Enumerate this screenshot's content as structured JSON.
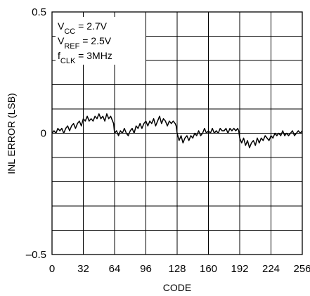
{
  "chart_data": {
    "type": "line",
    "title": "",
    "xlabel": "CODE",
    "ylabel": "INL ERROR (LSB)",
    "xlim": [
      0,
      256
    ],
    "ylim": [
      -0.5,
      0.5
    ],
    "x_ticks": [
      "0",
      "32",
      "64",
      "96",
      "128",
      "160",
      "192",
      "224",
      "256"
    ],
    "y_tick_labels": [
      {
        "value": 0.5,
        "label": "0.5"
      },
      {
        "value": 0,
        "label": "0"
      },
      {
        "value": -0.5,
        "label": "–0.5"
      }
    ],
    "grid": true,
    "annotation": [
      {
        "main": "V",
        "sub": "CC",
        "rest": " = 2.7V"
      },
      {
        "main": "V",
        "sub": "REF",
        "rest": " = 2.5V"
      },
      {
        "main": "f",
        "sub": "CLK",
        "rest": " = 3MHz"
      }
    ],
    "series": [
      {
        "points": [
          [
            0,
            0.0
          ],
          [
            2,
            0.01
          ],
          [
            4,
            0.0
          ],
          [
            6,
            0.02
          ],
          [
            8,
            0.01
          ],
          [
            10,
            0.02
          ],
          [
            12,
            0.0
          ],
          [
            14,
            0.02
          ],
          [
            16,
            0.03
          ],
          [
            18,
            0.01
          ],
          [
            20,
            0.03
          ],
          [
            22,
            0.04
          ],
          [
            24,
            0.02
          ],
          [
            26,
            0.04
          ],
          [
            28,
            0.05
          ],
          [
            30,
            0.03
          ],
          [
            32,
            0.06
          ],
          [
            34,
            0.05
          ],
          [
            36,
            0.07
          ],
          [
            38,
            0.05
          ],
          [
            40,
            0.06
          ],
          [
            42,
            0.05
          ],
          [
            44,
            0.07
          ],
          [
            46,
            0.06
          ],
          [
            48,
            0.08
          ],
          [
            50,
            0.06
          ],
          [
            52,
            0.07
          ],
          [
            54,
            0.05
          ],
          [
            56,
            0.08
          ],
          [
            58,
            0.06
          ],
          [
            60,
            0.07
          ],
          [
            62,
            0.05
          ],
          [
            63,
            0.04
          ],
          [
            64,
            0.0
          ],
          [
            66,
            0.01
          ],
          [
            68,
            -0.01
          ],
          [
            70,
            0.01
          ],
          [
            72,
            0.0
          ],
          [
            74,
            0.02
          ],
          [
            76,
            0.0
          ],
          [
            78,
            -0.01
          ],
          [
            80,
            0.01
          ],
          [
            82,
            0.02
          ],
          [
            84,
            0.0
          ],
          [
            86,
            0.03
          ],
          [
            88,
            0.02
          ],
          [
            90,
            0.04
          ],
          [
            92,
            0.02
          ],
          [
            94,
            0.04
          ],
          [
            96,
            0.05
          ],
          [
            98,
            0.03
          ],
          [
            100,
            0.05
          ],
          [
            102,
            0.04
          ],
          [
            104,
            0.06
          ],
          [
            106,
            0.03
          ],
          [
            108,
            0.05
          ],
          [
            110,
            0.07
          ],
          [
            112,
            0.04
          ],
          [
            114,
            0.06
          ],
          [
            116,
            0.05
          ],
          [
            118,
            0.03
          ],
          [
            120,
            0.05
          ],
          [
            122,
            0.04
          ],
          [
            124,
            0.05
          ],
          [
            126,
            0.04
          ],
          [
            127,
            0.03
          ],
          [
            128,
            0.0
          ],
          [
            130,
            -0.03
          ],
          [
            132,
            -0.01
          ],
          [
            134,
            -0.04
          ],
          [
            136,
            -0.02
          ],
          [
            138,
            -0.01
          ],
          [
            140,
            -0.03
          ],
          [
            142,
            -0.01
          ],
          [
            144,
            -0.02
          ],
          [
            146,
            0.0
          ],
          [
            148,
            -0.01
          ],
          [
            150,
            0.01
          ],
          [
            152,
            -0.01
          ],
          [
            154,
            0.0
          ],
          [
            156,
            0.02
          ],
          [
            158,
            0.0
          ],
          [
            160,
            0.01
          ],
          [
            162,
            0.0
          ],
          [
            164,
            0.02
          ],
          [
            166,
            0.0
          ],
          [
            168,
            0.01
          ],
          [
            170,
            0.0
          ],
          [
            172,
            0.02
          ],
          [
            174,
            0.01
          ],
          [
            176,
            0.01
          ],
          [
            178,
            0.02
          ],
          [
            180,
            0.0
          ],
          [
            182,
            0.02
          ],
          [
            184,
            0.01
          ],
          [
            186,
            0.02
          ],
          [
            188,
            0.01
          ],
          [
            190,
            0.02
          ],
          [
            191,
            0.01
          ],
          [
            192,
            -0.02
          ],
          [
            194,
            -0.04
          ],
          [
            196,
            -0.02
          ],
          [
            198,
            -0.05
          ],
          [
            200,
            -0.03
          ],
          [
            202,
            -0.06
          ],
          [
            204,
            -0.04
          ],
          [
            206,
            -0.03
          ],
          [
            208,
            -0.05
          ],
          [
            210,
            -0.02
          ],
          [
            212,
            -0.04
          ],
          [
            214,
            -0.02
          ],
          [
            216,
            -0.03
          ],
          [
            218,
            -0.01
          ],
          [
            220,
            -0.02
          ],
          [
            222,
            -0.03
          ],
          [
            224,
            -0.01
          ],
          [
            226,
            -0.02
          ],
          [
            228,
            0.0
          ],
          [
            230,
            -0.01
          ],
          [
            232,
            0.0
          ],
          [
            234,
            -0.01
          ],
          [
            236,
            0.01
          ],
          [
            238,
            -0.01
          ],
          [
            240,
            0.0
          ],
          [
            242,
            -0.01
          ],
          [
            244,
            0.0
          ],
          [
            246,
            0.01
          ],
          [
            248,
            -0.01
          ],
          [
            250,
            0.0
          ],
          [
            252,
            0.01
          ],
          [
            254,
            0.0
          ],
          [
            256,
            0.01
          ]
        ]
      }
    ]
  }
}
